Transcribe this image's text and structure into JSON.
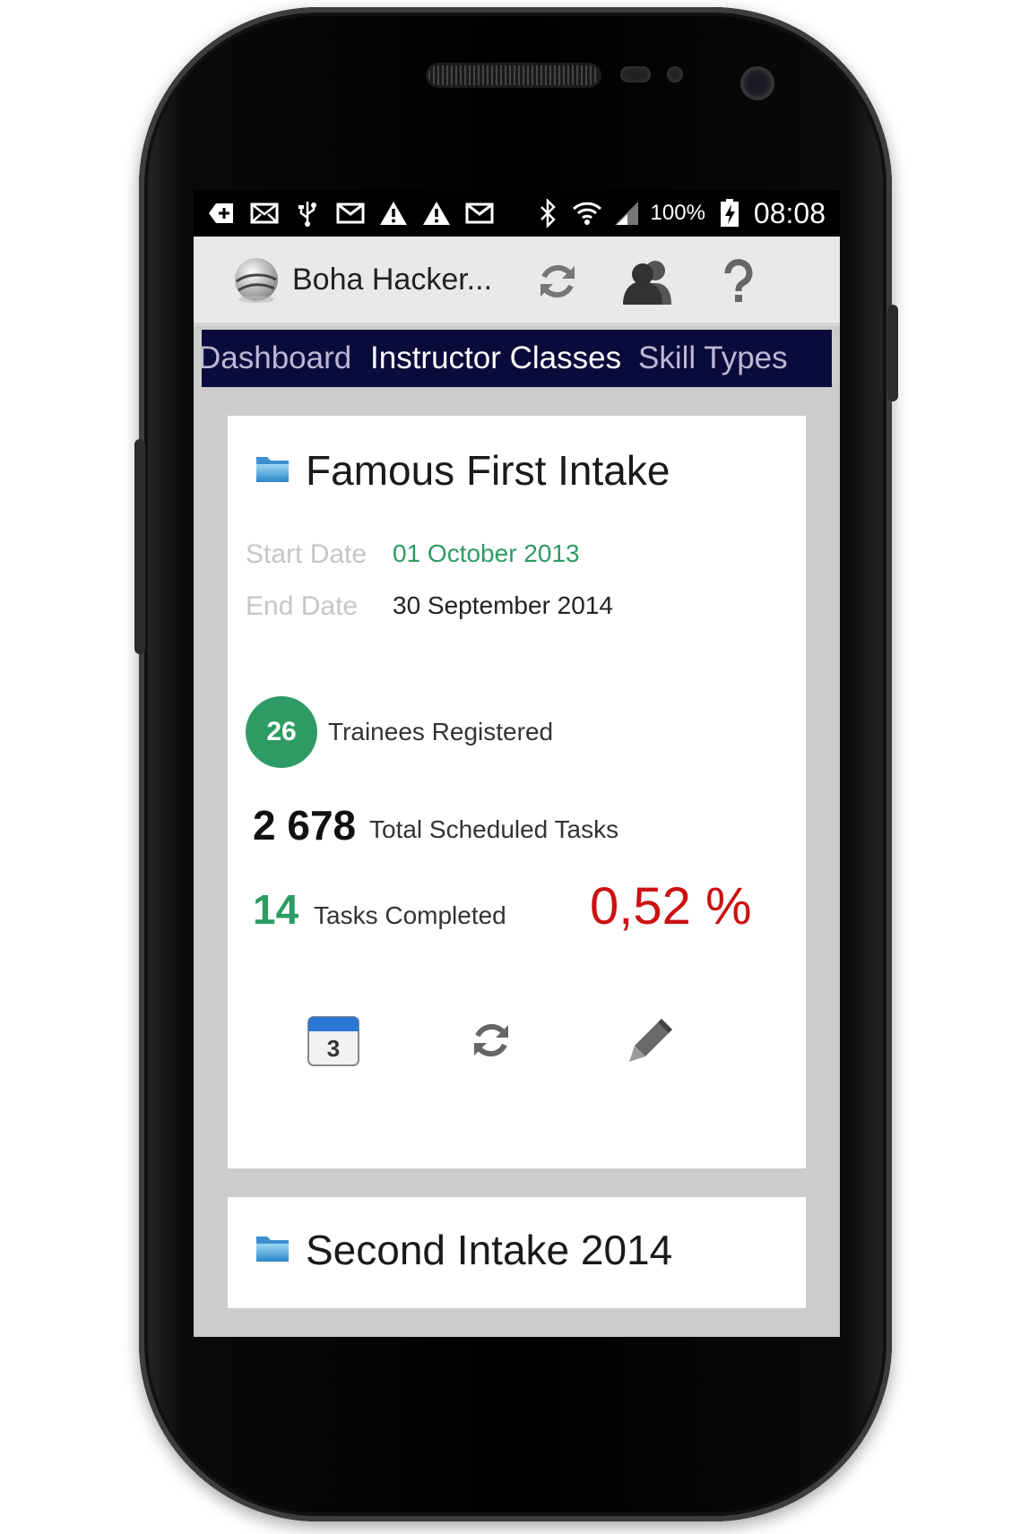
{
  "status_bar": {
    "battery": "100%",
    "time": "08:08",
    "icons_left": [
      "add-box-icon",
      "mail-icon",
      "usb-icon",
      "gmail-icon",
      "warning-icon",
      "warning-icon",
      "gmail-icon"
    ],
    "icons_right": [
      "bluetooth-icon",
      "wifi-icon",
      "signal-icon",
      "battery-charging-icon"
    ]
  },
  "action_bar": {
    "title": "Boha Hacker...",
    "icons": [
      "refresh-icon",
      "users-icon",
      "help-icon"
    ]
  },
  "tabs": [
    {
      "label": "Dashboard",
      "active": false
    },
    {
      "label": "Instructor Classes",
      "active": true
    },
    {
      "label": "Skill Types",
      "active": false
    }
  ],
  "cards": [
    {
      "title": "Famous First Intake",
      "start_label": "Start Date",
      "start_value": "01 October 2013",
      "end_label": "End Date",
      "end_value": "30 September 2014",
      "trainees_count": "26",
      "trainees_label": "Trainees Registered",
      "total_tasks": "2 678",
      "total_tasks_label": "Total Scheduled Tasks",
      "completed_tasks": "14",
      "completed_label": "Tasks Completed",
      "percent": "0,52 %",
      "calendar_day": "3"
    },
    {
      "title": "Second Intake 2014"
    }
  ],
  "colors": {
    "tab_bar": "#0b0b3b",
    "accent_green": "#2e9b65",
    "percent_red": "#cc1111",
    "screen_bg": "#cccccc"
  }
}
